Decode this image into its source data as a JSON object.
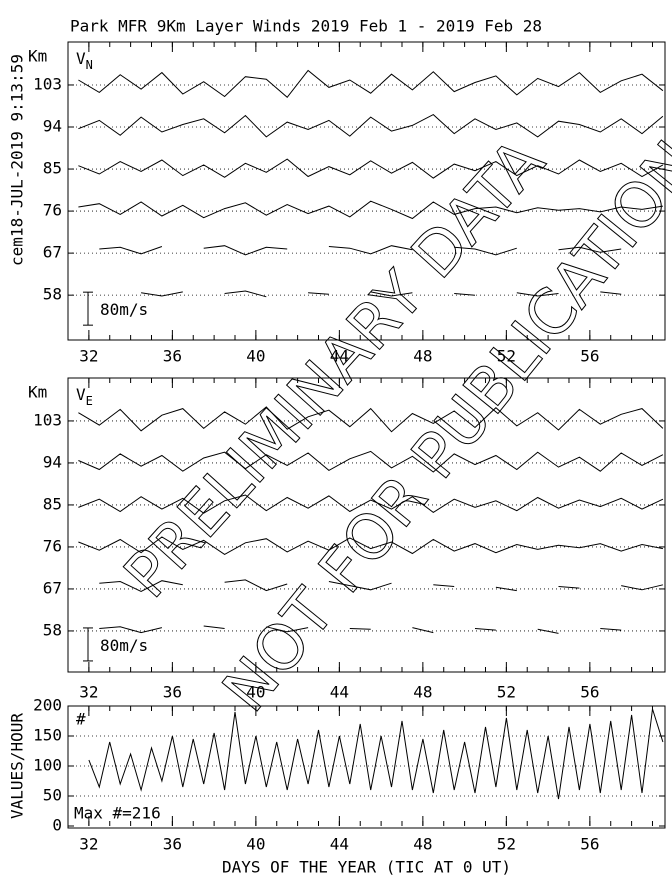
{
  "stamp": "cem18-JUL-2019  9:13:59",
  "watermark": [
    "PRELIMINARY DATA",
    "NOT FOR PUBLICATION"
  ],
  "chart_data": [
    {
      "type": "wind",
      "title": "Park MFR 9Km Layer Winds 2019 Feb  1 - 2019 Feb 28",
      "ylabel": "Km",
      "component": "V",
      "subscript": "N",
      "xlim": [
        31,
        59.6
      ],
      "xticks": [
        32,
        36,
        40,
        44,
        48,
        52,
        56
      ],
      "ylim": [
        48.4,
        112.2
      ],
      "yticks": [
        58,
        67,
        76,
        85,
        94,
        103
      ],
      "scale_bar": {
        "value": 80,
        "label": "80m/s"
      },
      "x": [
        31.5,
        32.5,
        33.5,
        34.5,
        35.5,
        36.5,
        37.5,
        38.5,
        39.5,
        40.5,
        41.5,
        42.5,
        43.5,
        44.5,
        45.5,
        46.5,
        47.5,
        48.5,
        49.5,
        50.5,
        51.5,
        52.5,
        53.5,
        54.5,
        55.5,
        56.5,
        57.5,
        58.5,
        59.5
      ],
      "series": [
        {
          "altitude": 103,
          "values": [
            12,
            -18,
            25,
            -10,
            30,
            -22,
            8,
            -28,
            20,
            14,
            -30,
            35,
            -6,
            12,
            -20,
            26,
            -12,
            32,
            -16,
            6,
            22,
            -24,
            16,
            -4,
            30,
            -18,
            10,
            26,
            -14
          ]
        },
        {
          "altitude": 94,
          "values": [
            -4,
            16,
            -20,
            24,
            -12,
            6,
            20,
            -14,
            28,
            -24,
            12,
            -6,
            16,
            -22,
            24,
            -10,
            4,
            30,
            -16,
            20,
            -6,
            10,
            -24,
            14,
            6,
            -12,
            20,
            -16,
            26
          ]
        },
        {
          "altitude": 85,
          "values": [
            8,
            -12,
            18,
            -6,
            22,
            -16,
            10,
            -20,
            14,
            -8,
            24,
            -18,
            6,
            -14,
            20,
            -10,
            16,
            -22,
            12,
            -4,
            18,
            -16,
            8,
            -12,
            22,
            -6,
            14,
            -18,
            10
          ]
        },
        {
          "altitude": 76,
          "values": [
            10,
            18,
            -8,
            22,
            -12,
            14,
            -16,
            6,
            20,
            -10,
            16,
            -6,
            12,
            -14,
            24,
            4,
            -18,
            22,
            -8,
            6,
            10,
            -4,
            8,
            2,
            6,
            -2,
            10,
            4,
            12
          ]
        },
        {
          "altitude": 67,
          "values": [
            null,
            10,
            14,
            -2,
            16,
            null,
            12,
            18,
            -4,
            14,
            10,
            null,
            16,
            12,
            -2,
            18,
            8,
            null,
            14,
            10,
            -4,
            12,
            null,
            8,
            14,
            2,
            10,
            null,
            16
          ]
        },
        {
          "altitude": 58,
          "values": [
            null,
            4,
            null,
            6,
            -2,
            8,
            null,
            4,
            10,
            -4,
            null,
            6,
            2,
            null,
            8,
            -2,
            6,
            null,
            4,
            0,
            null,
            6,
            -2,
            4,
            null,
            8,
            2,
            null,
            6
          ]
        }
      ]
    },
    {
      "type": "wind",
      "ylabel": "Km",
      "component": "V",
      "subscript": "E",
      "xlim": [
        31,
        59.6
      ],
      "xticks": [
        32,
        36,
        40,
        44,
        48,
        52,
        56
      ],
      "ylim": [
        49.2,
        112.2
      ],
      "yticks": [
        58,
        67,
        76,
        85,
        94,
        103
      ],
      "scale_bar": {
        "value": 80,
        "label": "80m/s"
      },
      "x": [
        31.5,
        32.5,
        33.5,
        34.5,
        35.5,
        36.5,
        37.5,
        38.5,
        39.5,
        40.5,
        41.5,
        42.5,
        43.5,
        44.5,
        45.5,
        46.5,
        47.5,
        48.5,
        49.5,
        50.5,
        51.5,
        52.5,
        53.5,
        54.5,
        55.5,
        56.5,
        57.5,
        58.5,
        59.5
      ],
      "series": [
        {
          "altitude": 103,
          "values": [
            20,
            -10,
            28,
            -24,
            14,
            30,
            -18,
            22,
            -8,
            34,
            -20,
            10,
            26,
            -14,
            30,
            -26,
            18,
            -6,
            24,
            -16,
            32,
            -12,
            20,
            -22,
            28,
            -8,
            16,
            30,
            -18
          ]
        },
        {
          "altitude": 94,
          "values": [
            6,
            -16,
            22,
            -8,
            18,
            -20,
            12,
            26,
            -14,
            20,
            -6,
            24,
            -18,
            10,
            28,
            -12,
            16,
            -22,
            22,
            -4,
            18,
            -16,
            26,
            -10,
            14,
            -20,
            24,
            -6,
            20
          ]
        },
        {
          "altitude": 85,
          "values": [
            -6,
            14,
            -16,
            20,
            -10,
            16,
            -20,
            10,
            24,
            -14,
            18,
            -8,
            22,
            -16,
            12,
            -10,
            20,
            -18,
            14,
            -6,
            10,
            -14,
            18,
            -8,
            12,
            -4,
            16,
            -10,
            14
          ]
        },
        {
          "altitude": 76,
          "values": [
            12,
            -8,
            18,
            -14,
            24,
            -6,
            16,
            -18,
            10,
            20,
            -12,
            14,
            -8,
            22,
            -4,
            12,
            -16,
            18,
            -10,
            8,
            -14,
            6,
            -6,
            4,
            -2,
            8,
            -10,
            6,
            -4
          ]
        },
        {
          "altitude": 67,
          "values": [
            null,
            14,
            18,
            -6,
            20,
            10,
            null,
            16,
            22,
            -4,
            12,
            null,
            18,
            8,
            -2,
            14,
            null,
            10,
            6,
            null,
            4,
            -4,
            null,
            6,
            2,
            null,
            8,
            -2,
            10
          ]
        },
        {
          "altitude": 58,
          "values": [
            null,
            6,
            10,
            -4,
            8,
            null,
            12,
            6,
            null,
            10,
            -2,
            8,
            null,
            6,
            4,
            null,
            8,
            -4,
            null,
            6,
            2,
            null,
            4,
            -6,
            null,
            6,
            2,
            null,
            8
          ]
        }
      ]
    },
    {
      "type": "line",
      "ylabel": "VALUES/HOUR",
      "xlabel": "DAYS OF THE YEAR (TIC AT 0 UT)",
      "symbol": "#",
      "note": "Max #=216",
      "xlim": [
        31,
        59.6
      ],
      "xticks": [
        32,
        36,
        40,
        44,
        48,
        52,
        56
      ],
      "ylim": [
        0,
        200
      ],
      "yticks": [
        0,
        50,
        100,
        150,
        200
      ],
      "x": [
        32,
        32.5,
        33,
        33.5,
        34,
        34.5,
        35,
        35.5,
        36,
        36.5,
        37,
        37.5,
        38,
        38.5,
        39,
        39.5,
        40,
        40.5,
        41,
        41.5,
        42,
        42.5,
        43,
        43.5,
        44,
        44.5,
        45,
        45.5,
        46,
        46.5,
        47,
        47.5,
        48,
        48.5,
        49,
        49.5,
        50,
        50.5,
        51,
        51.5,
        52,
        52.5,
        53,
        53.5,
        54,
        54.5,
        55,
        55.5,
        56,
        56.5,
        57,
        57.5,
        58,
        58.5,
        59,
        59.5
      ],
      "values": [
        110,
        65,
        140,
        70,
        120,
        60,
        130,
        75,
        150,
        65,
        145,
        70,
        155,
        60,
        190,
        70,
        150,
        65,
        140,
        60,
        145,
        70,
        160,
        65,
        150,
        70,
        170,
        60,
        150,
        65,
        175,
        60,
        145,
        55,
        160,
        60,
        140,
        55,
        165,
        65,
        180,
        60,
        160,
        55,
        150,
        45,
        165,
        60,
        170,
        55,
        175,
        60,
        185,
        55,
        195,
        140
      ]
    }
  ]
}
